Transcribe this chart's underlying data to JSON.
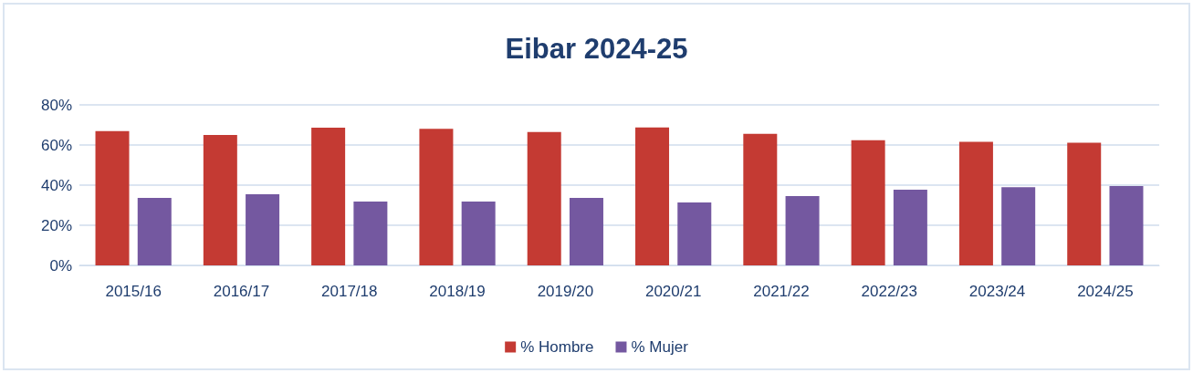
{
  "chart_data": {
    "type": "bar",
    "title": "Eibar 2024-25",
    "categories": [
      "2015/16",
      "2016/17",
      "2017/18",
      "2018/19",
      "2019/20",
      "2020/21",
      "2021/22",
      "2022/23",
      "2023/24",
      "2024/25"
    ],
    "series": [
      {
        "name": "% Hombre",
        "color": "#c43a33",
        "values": [
          66.9,
          65.0,
          68.6,
          68.1,
          66.5,
          68.7,
          65.6,
          62.4,
          61.6,
          61.1
        ]
      },
      {
        "name": "% Mujer",
        "color": "#7458a0",
        "values": [
          33.6,
          35.5,
          31.8,
          31.8,
          33.6,
          31.4,
          34.6,
          37.7,
          39.0,
          39.6
        ]
      }
    ],
    "ylim": [
      0,
      80
    ],
    "yticks": [
      {
        "value": 0,
        "label": "0%"
      },
      {
        "value": 20,
        "label": "20%"
      },
      {
        "value": 40,
        "label": "40%"
      },
      {
        "value": 60,
        "label": "60%"
      },
      {
        "value": 80,
        "label": "80%"
      }
    ],
    "grid": "y",
    "legend": "bottom"
  }
}
